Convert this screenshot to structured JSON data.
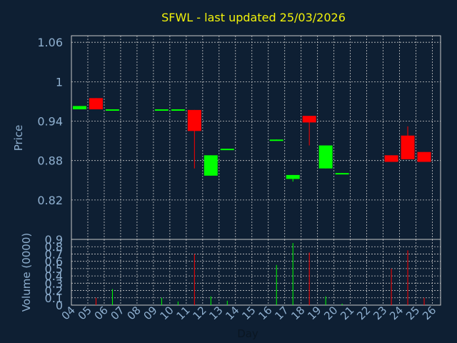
{
  "chart_data": {
    "type": "candlestick",
    "title": "SFWL - last updated 25/03/2026",
    "xlabel": "Day",
    "price_panel": {
      "ylabel": "Price",
      "ylim": [
        0.76,
        1.07
      ],
      "yticks": [
        "1.06",
        "1",
        "0.94",
        "0.88",
        "0.82"
      ],
      "ytick_values": [
        1.06,
        1.0,
        0.94,
        0.88,
        0.82
      ]
    },
    "volume_panel": {
      "ylabel": "Volume (0000)",
      "ylim": [
        0,
        0.9
      ],
      "yticks": [
        "0.9",
        "0.8",
        "0.7",
        "0.6",
        "0.5",
        "0.4",
        "0.3",
        "0.2",
        "0.1",
        "0"
      ],
      "ytick_values": [
        0.9,
        0.8,
        0.7,
        0.6,
        0.5,
        0.4,
        0.3,
        0.2,
        0.1,
        0
      ]
    },
    "days": [
      "04",
      "05",
      "06",
      "07",
      "08",
      "09",
      "10",
      "11",
      "12",
      "13",
      "14",
      "15",
      "16",
      "17",
      "18",
      "19",
      "20",
      "21",
      "22",
      "23",
      "24",
      "25",
      "26"
    ],
    "candles": [
      {
        "day": "04",
        "open": 0.958,
        "close": 0.963,
        "high": 0.963,
        "low": 0.958,
        "volume": 0
      },
      {
        "day": "05",
        "open": 0.975,
        "close": 0.958,
        "high": 0.975,
        "low": 0.958,
        "volume": 0.1
      },
      {
        "day": "06",
        "open": 0.957,
        "close": 0.958,
        "high": 0.958,
        "low": 0.957,
        "volume": 0.22
      },
      {
        "day": "09",
        "open": 0.957,
        "close": 0.958,
        "high": 0.958,
        "low": 0.957,
        "volume": 0.1
      },
      {
        "day": "10",
        "open": 0.957,
        "close": 0.958,
        "high": 0.958,
        "low": 0.957,
        "volume": 0.05
      },
      {
        "day": "11",
        "open": 0.957,
        "close": 0.925,
        "high": 0.957,
        "low": 0.868,
        "volume": 0.7
      },
      {
        "day": "12",
        "open": 0.857,
        "close": 0.888,
        "high": 0.888,
        "low": 0.857,
        "volume": 0.12
      },
      {
        "day": "13",
        "open": 0.897,
        "close": 0.898,
        "high": 0.898,
        "low": 0.897,
        "volume": 0.06
      },
      {
        "day": "16",
        "open": 0.911,
        "close": 0.912,
        "high": 0.912,
        "low": 0.911,
        "volume": 0.55
      },
      {
        "day": "17",
        "open": 0.852,
        "close": 0.858,
        "high": 0.858,
        "low": 0.848,
        "volume": 0.85
      },
      {
        "day": "18",
        "open": 0.948,
        "close": 0.938,
        "high": 0.948,
        "low": 0.903,
        "volume": 0.72
      },
      {
        "day": "19",
        "open": 0.868,
        "close": 0.903,
        "high": 0.903,
        "low": 0.868,
        "volume": 0.12
      },
      {
        "day": "20",
        "open": 0.86,
        "close": 0.861,
        "high": 0.861,
        "low": 0.86,
        "volume": 0.02
      },
      {
        "day": "23",
        "open": 0.888,
        "close": 0.878,
        "high": 0.888,
        "low": 0.878,
        "volume": 0.5
      },
      {
        "day": "24",
        "open": 0.918,
        "close": 0.882,
        "high": 0.932,
        "low": 0.882,
        "volume": 0.75
      },
      {
        "day": "25",
        "open": 0.893,
        "close": 0.878,
        "high": 0.893,
        "low": 0.878,
        "volume": 0.1
      }
    ],
    "colors": {
      "background": "#0e1f33",
      "plot_background": "#0e1f33",
      "grid": "#c8c8c8",
      "up": "#00ff00",
      "down": "#ff0000",
      "title": "#f2f20a",
      "axis_text": "#8fb0d0",
      "xlabel_text": "#0a1622"
    },
    "grid": true
  }
}
